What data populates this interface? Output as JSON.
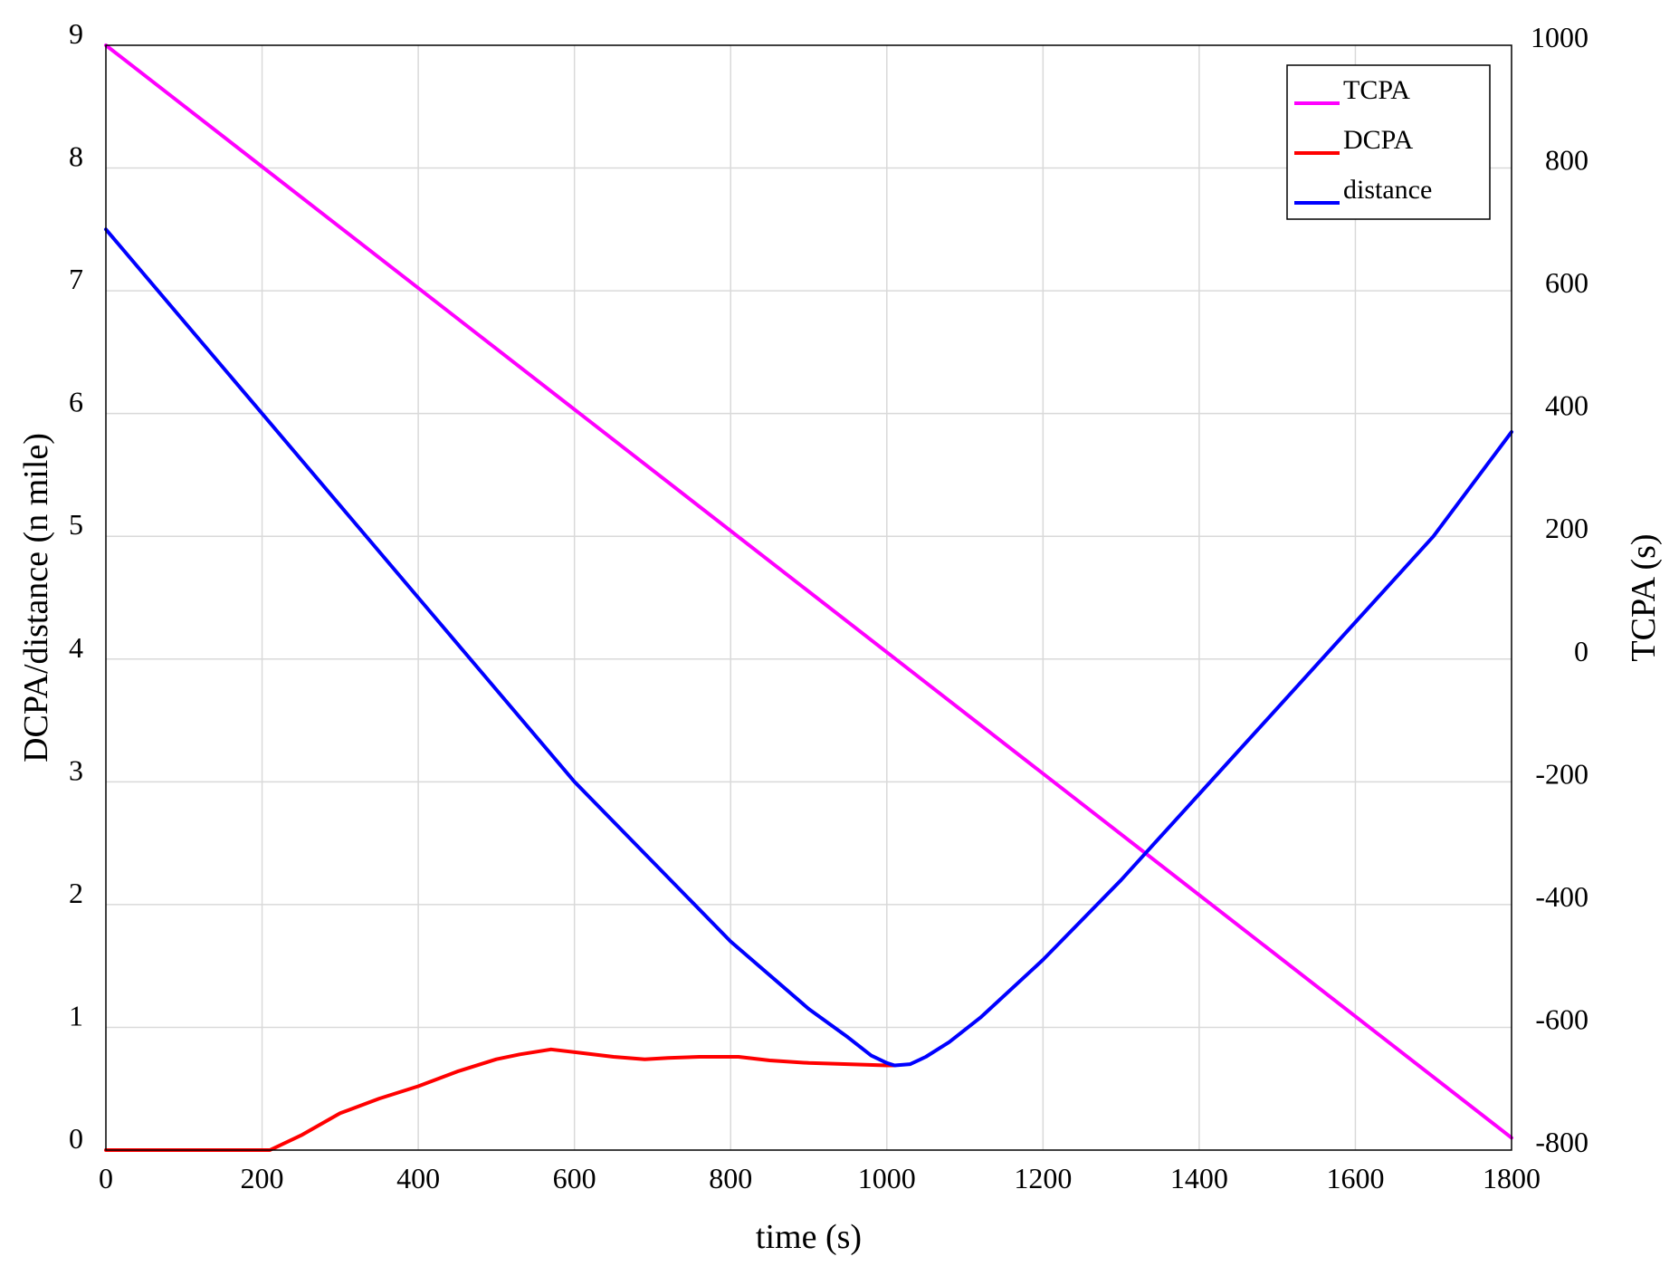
{
  "chart_data": {
    "type": "line",
    "xlabel": "time (s)",
    "ylabel_left": "DCPA/distance (n mile)",
    "ylabel_right": "TCPA (s)",
    "xlim": [
      0,
      1800
    ],
    "ylim_left": [
      0,
      9
    ],
    "ylim_right": [
      -800,
      1000
    ],
    "grid": true,
    "legend_position": "top-right",
    "x_ticks": [
      "0",
      "200",
      "400",
      "600",
      "800",
      "1000",
      "1200",
      "1400",
      "1600",
      "1800"
    ],
    "y_ticks_left": [
      "0",
      "1",
      "2",
      "3",
      "4",
      "5",
      "6",
      "7",
      "8",
      "9"
    ],
    "y_ticks_right": [
      "-800",
      "-600",
      "-400",
      "-200",
      "0",
      "200",
      "400",
      "600",
      "800",
      "1000"
    ],
    "series": [
      {
        "name": "TCPA",
        "axis": "right",
        "color": "#ff00ff",
        "x": [
          0,
          1800
        ],
        "y": [
          1000,
          -780
        ]
      },
      {
        "name": "DCPA",
        "axis": "left",
        "color": "#ff0000",
        "x": [
          0,
          210,
          250,
          300,
          350,
          400,
          450,
          500,
          530,
          570,
          610,
          650,
          690,
          720,
          760,
          800,
          810,
          850,
          900,
          950,
          1000,
          1010
        ],
        "y": [
          0,
          0,
          0.12,
          0.3,
          0.42,
          0.52,
          0.64,
          0.74,
          0.78,
          0.82,
          0.79,
          0.76,
          0.74,
          0.75,
          0.76,
          0.76,
          0.76,
          0.73,
          0.71,
          0.7,
          0.69,
          0.69
        ]
      },
      {
        "name": "distance",
        "axis": "left",
        "color": "#0000ff",
        "x": [
          0,
          200,
          400,
          600,
          800,
          900,
          950,
          980,
          1000,
          1010,
          1030,
          1050,
          1080,
          1120,
          1200,
          1300,
          1400,
          1500,
          1600,
          1700,
          1800
        ],
        "y": [
          7.5,
          6.0,
          4.5,
          3.0,
          1.7,
          1.15,
          0.92,
          0.77,
          0.71,
          0.69,
          0.7,
          0.76,
          0.88,
          1.08,
          1.55,
          2.2,
          2.9,
          3.6,
          4.3,
          5.0,
          5.85
        ]
      }
    ]
  }
}
